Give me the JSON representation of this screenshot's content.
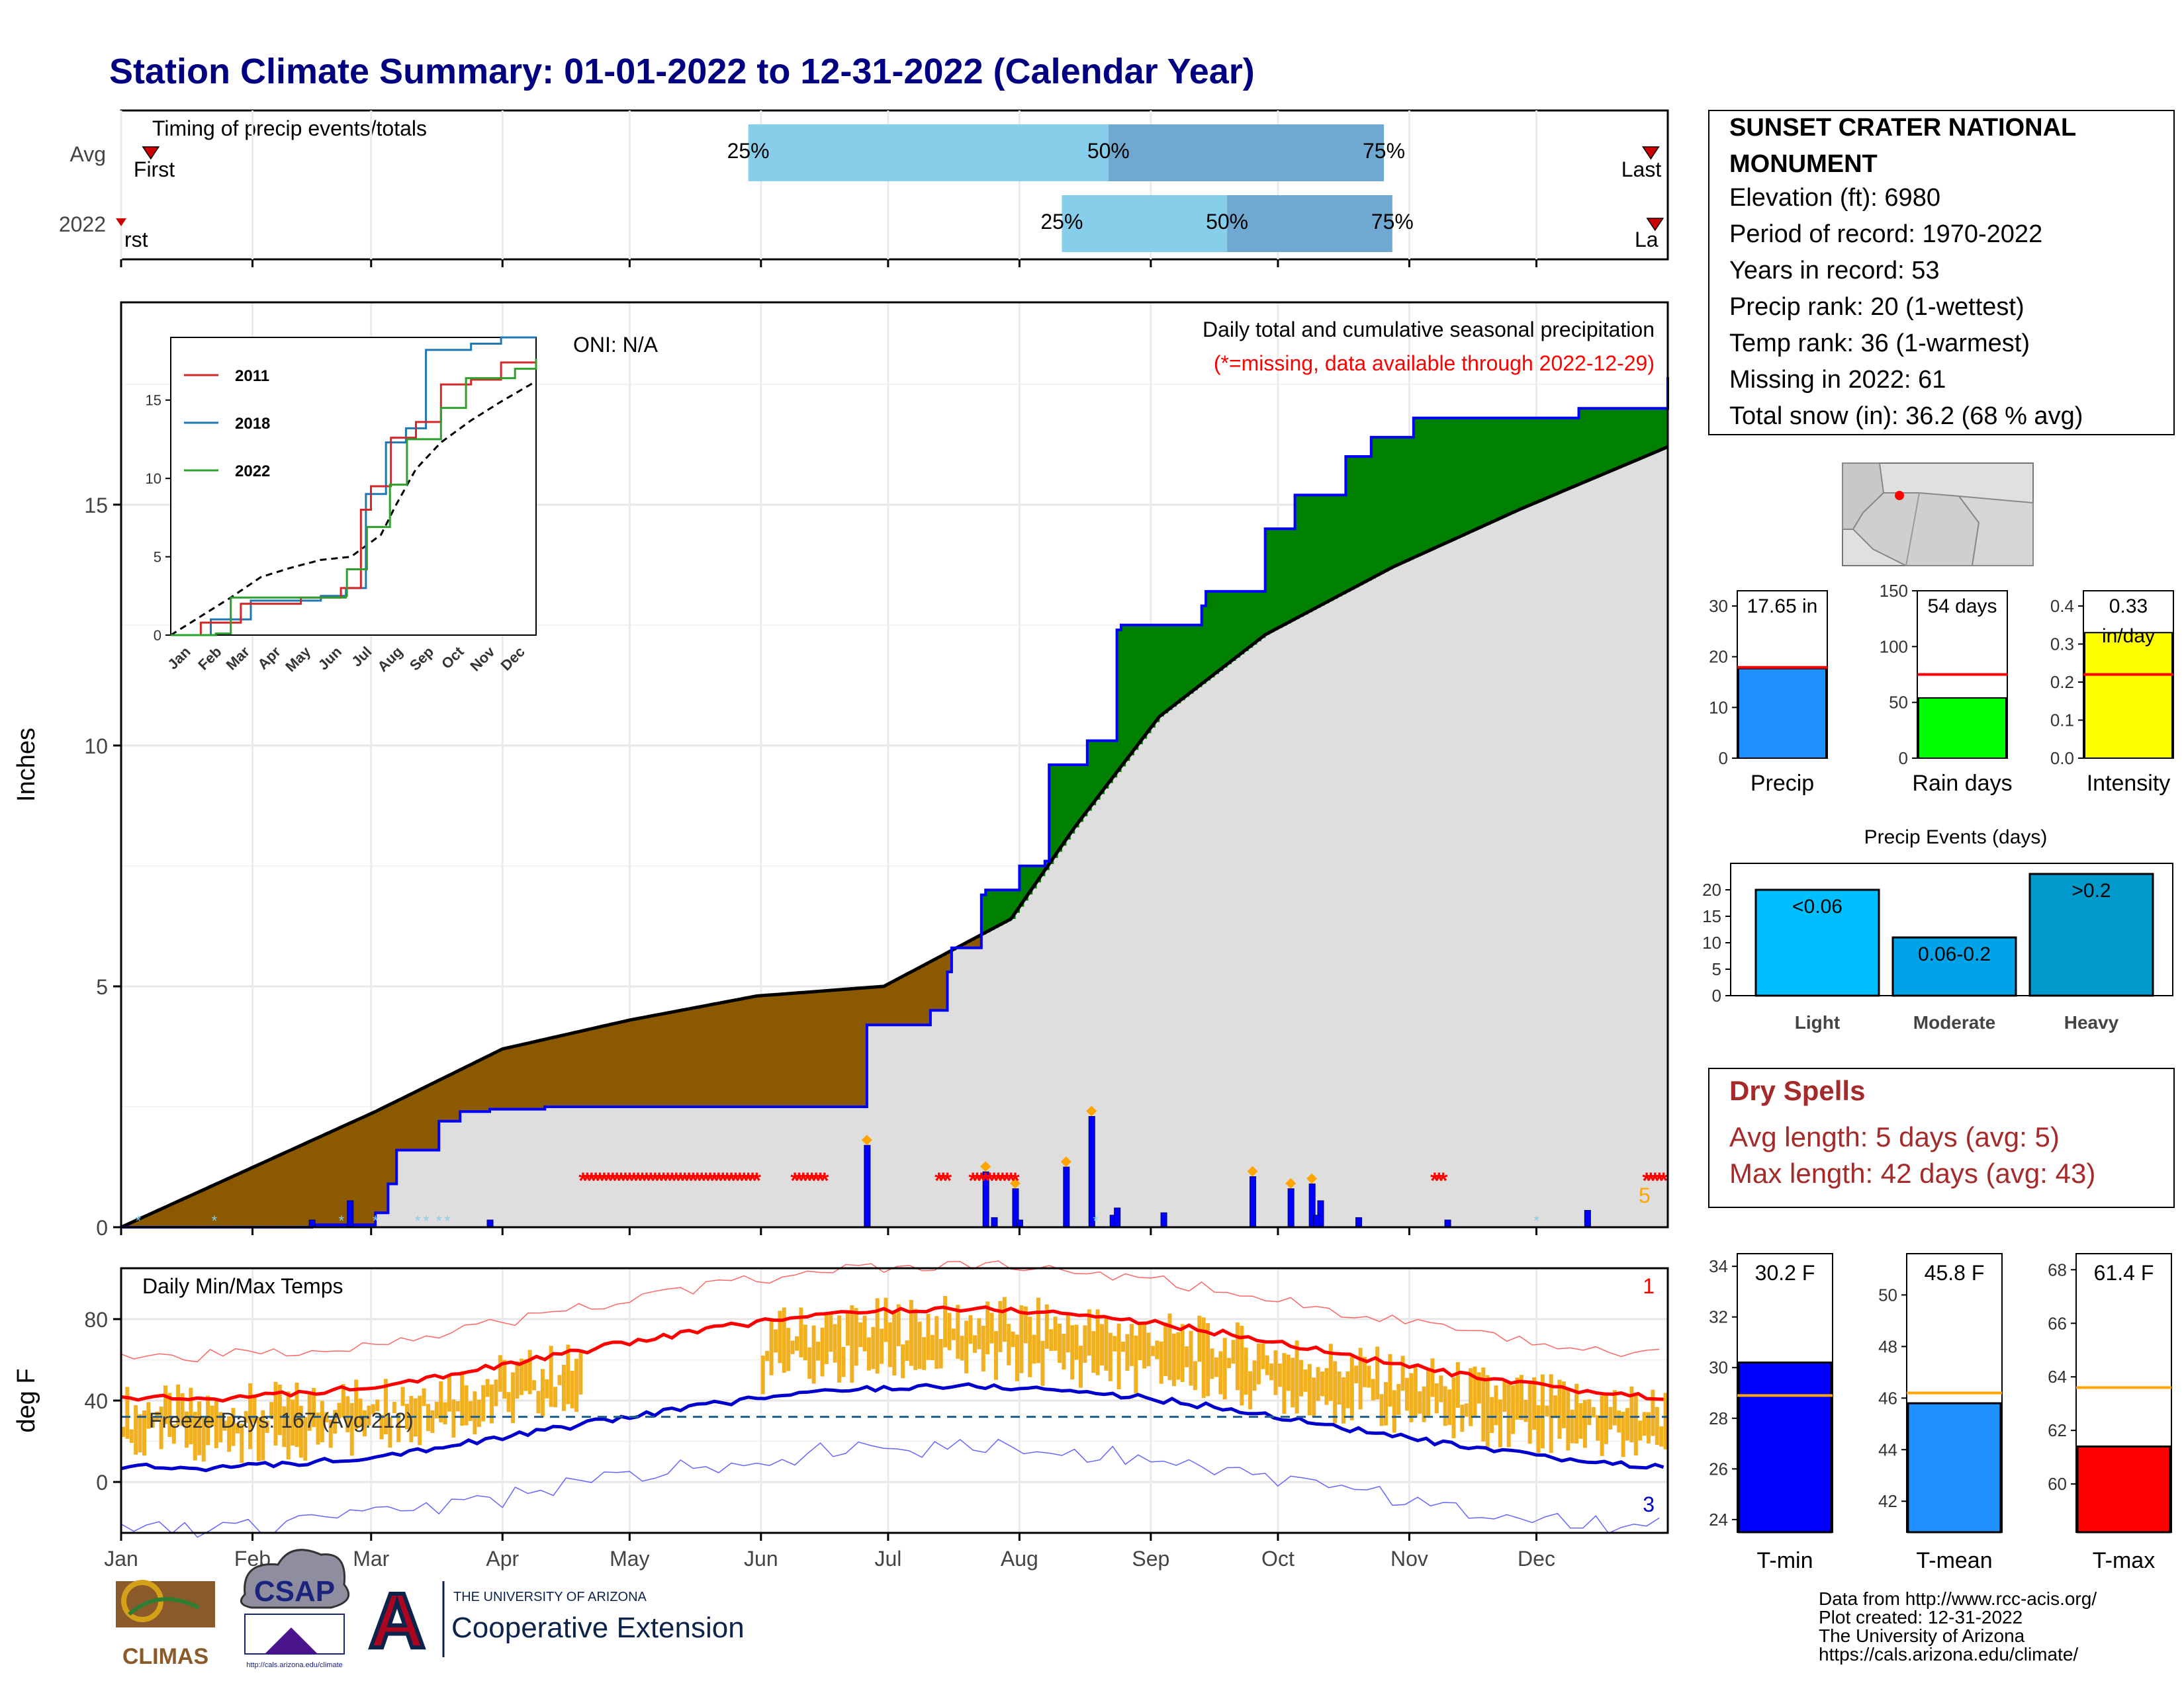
{
  "title": "Station Climate Summary: 01-01-2022 to 12-31-2022 (Calendar Year)",
  "colors": {
    "title": "#000080",
    "wet": "#008000",
    "dry": "#8B5A00",
    "normal_fill": "#dedede",
    "precip": "#0000ff",
    "tmax": "#ff0000",
    "tmin": "#0000cc",
    "range": "#f0b020",
    "dry_spell": "#a52a2a"
  },
  "months": [
    "Jan",
    "Feb",
    "Mar",
    "Apr",
    "May",
    "Jun",
    "Jul",
    "Aug",
    "Sep",
    "Oct",
    "Nov",
    "Dec"
  ],
  "timing": {
    "label": "Timing of precip events/totals",
    "rows": [
      "Avg",
      "2022"
    ],
    "first_label": "First",
    "last_label": "Last",
    "first_label_2022": "rst",
    "last_label_2022": "La",
    "pct_labels": [
      "25%",
      "50%",
      "75%"
    ],
    "avg": {
      "p25": 148,
      "p50": 233,
      "p75": 298
    },
    "y2022": {
      "p25": 222,
      "p50": 261,
      "p75": 300
    }
  },
  "precip_panel": {
    "ylabel": "Inches",
    "title": "Daily total and cumulative seasonal precipitation",
    "subtitle": "(*=missing, data available through 2022-12-29)",
    "oni": "ONI: N/A",
    "yticks": [
      "0",
      "5",
      "10",
      "15"
    ],
    "count_label": "5"
  },
  "inset": {
    "legend": [
      "2011",
      "2018",
      "2022"
    ],
    "yticks": [
      "0",
      "5",
      "10",
      "15"
    ],
    "xticks": [
      "Jan",
      "Feb",
      "Mar",
      "Apr",
      "May",
      "Jun",
      "Jul",
      "Aug",
      "Sep",
      "Oct",
      "Nov",
      "Dec"
    ]
  },
  "temp_panel": {
    "title": "Daily Min/Max Temps",
    "ylabel": "deg F",
    "freeze": "Freeze Days: 167 (Avg:212)",
    "yticks": [
      "0",
      "40",
      "80"
    ],
    "max_count": "1",
    "min_count": "3"
  },
  "station": {
    "name": "SUNSET CRATER NATIONAL",
    "name2": "MONUMENT",
    "lines": [
      "Elevation (ft): 6980",
      "Period of record: 1970-2022",
      "Years in record: 53",
      "Precip rank: 20 (1-wettest)",
      "Temp rank: 36 (1-warmest)",
      "Missing in 2022: 61",
      "Total snow (in): 36.2 (68 % avg)"
    ]
  },
  "minibars": {
    "precip": {
      "label": "Precip",
      "value_label": "17.65 in",
      "value": 17.65,
      "avg": 17.9,
      "ymax": 33,
      "yticks": [
        "0",
        "10",
        "20",
        "30"
      ],
      "color": "#1e90ff"
    },
    "raindays": {
      "label": "Rain days",
      "value_label": "54 days",
      "value": 54,
      "avg": 75,
      "ymax": 150,
      "yticks": [
        "0",
        "50",
        "100",
        "150"
      ],
      "color": "#00ff00"
    },
    "intensity": {
      "label": "Intensity",
      "value_label": "0.33",
      "unit": "in/day",
      "value": 0.33,
      "avg": 0.22,
      "ymax": 0.44,
      "yticks": [
        "0.0",
        "0.1",
        "0.2",
        "0.3",
        "0.4"
      ],
      "color": "#ffff00"
    }
  },
  "events": {
    "title": "Precip Events (days)",
    "bars": [
      {
        "name": "Light",
        "label": "<0.06",
        "value": 20,
        "color": "#00bfff"
      },
      {
        "name": "Moderate",
        "label": "0.06-0.2",
        "value": 11,
        "color": "#00a2e8"
      },
      {
        "name": "Heavy",
        "label": ">0.2",
        "value": 23,
        "color": "#0099cc"
      }
    ],
    "yticks": [
      "0",
      "5",
      "10",
      "15",
      "20"
    ]
  },
  "dry_spells": {
    "title": "Dry Spells",
    "avg": "Avg length: 5 days (avg: 5)",
    "max": "Max length: 42 days (avg: 43)"
  },
  "temp_bars": [
    {
      "label": "T-min",
      "value_label": "30.2 F",
      "value": 30.2,
      "avg": 28.9,
      "ymin": 23.5,
      "ymax": 34.5,
      "yticks": [
        24,
        26,
        28,
        30,
        32,
        34
      ],
      "color": "#0000ff"
    },
    {
      "label": "T-mean",
      "value_label": "45.8 F",
      "value": 45.8,
      "avg": 46.2,
      "ymin": 40.8,
      "ymax": 51.6,
      "yticks": [
        42,
        44,
        46,
        48,
        50
      ],
      "color": "#1e90ff"
    },
    {
      "label": "T-max",
      "value_label": "61.4 F",
      "value": 61.4,
      "avg": 63.6,
      "ymin": 58.2,
      "ymax": 68.6,
      "yticks": [
        60,
        62,
        64,
        66,
        68
      ],
      "color": "#ff0000"
    }
  ],
  "footer": {
    "lines": [
      "Data from http://www.rcc-acis.org/",
      "Plot created: 12-31-2022",
      "The University of Arizona",
      "https://cals.arizona.edu/climate/"
    ],
    "climas": "CLIMAS",
    "csap": "CSAP",
    "csap_url": "http://cals.arizona.edu/climate",
    "ua_small": "THE UNIVERSITY OF ARIZONA",
    "ua_big": "Cooperative Extension",
    "ua_letter": "A"
  },
  "chart_data": {
    "type": "area",
    "title": "Daily total and cumulative seasonal precipitation",
    "ylabel": "Inches",
    "x_unit": "day of year 2022",
    "ylim": [
      0,
      19.2
    ],
    "normal_cumulative": {
      "day": [
        0,
        30,
        60,
        90,
        120,
        150,
        180,
        210,
        225,
        245,
        270,
        300,
        330,
        365
      ],
      "inches": [
        0,
        1.2,
        2.4,
        3.7,
        4.3,
        4.8,
        5.0,
        6.4,
        8.3,
        10.6,
        12.3,
        13.7,
        14.9,
        16.2
      ]
    },
    "observed_cumulative": {
      "day": [
        0,
        45,
        60,
        63,
        65,
        75,
        80,
        87,
        100,
        125,
        140,
        145,
        160,
        175,
        176,
        190,
        191,
        195,
        196,
        203,
        204,
        209,
        212,
        218,
        219,
        228,
        235,
        236,
        244,
        255,
        256,
        270,
        277,
        289,
        295,
        305,
        344,
        365
      ],
      "inches": [
        0,
        0.05,
        0.3,
        0.9,
        1.6,
        2.2,
        2.4,
        2.45,
        2.5,
        2.5,
        2.5,
        2.5,
        2.5,
        2.5,
        4.2,
        4.2,
        4.5,
        5.3,
        5.8,
        6.9,
        7.0,
        7.0,
        7.5,
        7.6,
        9.6,
        10.1,
        12.4,
        12.5,
        12.5,
        12.9,
        13.2,
        14.5,
        15.2,
        16.0,
        16.4,
        16.8,
        17.0,
        17.65
      ]
    },
    "daily_precip": {
      "day": [
        45,
        54,
        87,
        176,
        204,
        206,
        211,
        212,
        223,
        229,
        234,
        235,
        246,
        267,
        276,
        281,
        283,
        282,
        292,
        313,
        346
      ],
      "inches": [
        0.15,
        0.55,
        0.15,
        1.7,
        1.15,
        0.2,
        0.8,
        0.15,
        1.25,
        2.3,
        0.25,
        0.4,
        0.3,
        1.05,
        0.8,
        0.9,
        0.55,
        0.25,
        0.2,
        0.15,
        0.35
      ]
    },
    "missing_days": {
      "day_ranges": [
        [
          109,
          150
        ],
        [
          159,
          166
        ],
        [
          193,
          195
        ],
        [
          201,
          211
        ],
        [
          310,
          312
        ],
        [
          360,
          364
        ]
      ]
    },
    "temps": {
      "tmax_avg_range": [
        40,
        85
      ],
      "tmin_avg_range": [
        8,
        48
      ],
      "freeze_line": 32,
      "ylim": [
        -25,
        105
      ]
    }
  }
}
